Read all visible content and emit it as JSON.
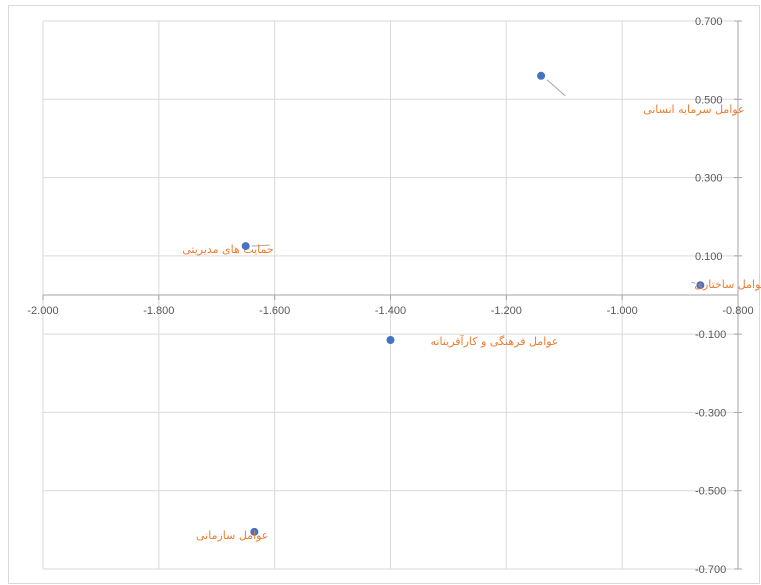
{
  "chart_data": {
    "type": "scatter",
    "title": "",
    "xlabel": "",
    "ylabel": "",
    "xlim": [
      -2.0,
      -0.8
    ],
    "ylim": [
      -0.7,
      0.7
    ],
    "x_ticks": [
      -2.0,
      -1.8,
      -1.6,
      -1.4,
      -1.2,
      -1.0,
      -0.8
    ],
    "y_ticks": [
      -0.7,
      -0.5,
      -0.3,
      -0.1,
      0.1,
      0.3,
      0.5,
      0.7
    ],
    "x_tick_labels": [
      "-2.000",
      "-1.800",
      "-1.600",
      "-1.400",
      "-1.200",
      "-1.000",
      "-0.800"
    ],
    "y_tick_labels": [
      "-0.700",
      "-0.500",
      "-0.300",
      "-0.100",
      "0.100",
      "0.300",
      "0.500",
      "0.700"
    ],
    "grid": true,
    "marker_color": "#4472c4",
    "label_color": "#ed7d31",
    "points": [
      {
        "x": -1.14,
        "y": 0.56,
        "label": "عوامل سرمایه انسانی"
      },
      {
        "x": -1.65,
        "y": 0.125,
        "label": "حمایت های مدیریتی"
      },
      {
        "x": -0.865,
        "y": 0.025,
        "label": "عوامل ساختاری"
      },
      {
        "x": -1.4,
        "y": -0.115,
        "label": "عوامل فرهنگی و کارآفرینانه"
      },
      {
        "x": -1.635,
        "y": -0.605,
        "label": "عوامل سازمانی"
      }
    ]
  }
}
